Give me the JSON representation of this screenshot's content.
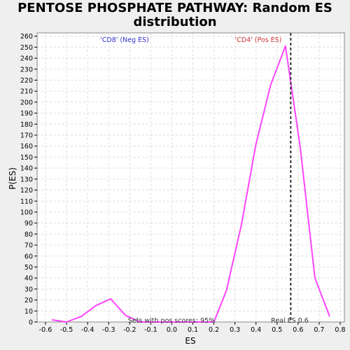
{
  "chart_data": {
    "type": "line",
    "title": "PENTOSE PHOSPHATE PATHWAY: Random ES distribution",
    "xlabel": "ES",
    "ylabel": "P(ES)",
    "xlim": [
      -0.64,
      0.82
    ],
    "ylim": [
      0,
      263
    ],
    "x_ticks": [
      "-0.6",
      "-0.5",
      "-0.4",
      "-0.3",
      "-0.2",
      "-0.1",
      "0.0",
      "0.1",
      "0.2",
      "0.3",
      "0.4",
      "0.5",
      "0.6",
      "0.7",
      "0.8"
    ],
    "x_tick_values": [
      -0.6,
      -0.5,
      -0.4,
      -0.3,
      -0.2,
      -0.1,
      0.0,
      0.1,
      0.2,
      0.3,
      0.4,
      0.5,
      0.6,
      0.7,
      0.8
    ],
    "y_ticks": [
      "0",
      "10",
      "20",
      "30",
      "40",
      "50",
      "60",
      "70",
      "80",
      "90",
      "100",
      "110",
      "120",
      "130",
      "140",
      "150",
      "160",
      "170",
      "180",
      "190",
      "200",
      "210",
      "220",
      "230",
      "240",
      "250",
      "260"
    ],
    "y_tick_values": [
      0,
      10,
      20,
      30,
      40,
      50,
      60,
      70,
      80,
      90,
      100,
      110,
      120,
      130,
      140,
      150,
      160,
      170,
      180,
      190,
      200,
      210,
      220,
      230,
      240,
      250,
      260
    ],
    "grid": true,
    "series": [
      {
        "color": "#ff44ff",
        "x": [
          -0.57,
          -0.5,
          -0.43,
          -0.36,
          -0.29,
          -0.22,
          -0.15,
          -0.08,
          -0.01,
          0.06,
          0.13,
          0.2,
          0.26,
          0.33,
          0.4,
          0.47,
          0.54,
          0.61,
          0.68,
          0.75
        ],
        "y": [
          2,
          0,
          5,
          15,
          21,
          6,
          0,
          0,
          0,
          0,
          0,
          0,
          29,
          88,
          162,
          216,
          251,
          159,
          40,
          5
        ]
      }
    ],
    "real_es": 0.565,
    "annotations": {
      "neg_label": "'CD8' (Neg ES)",
      "pos_label": "'CD4' (Pos ES)",
      "sets_label": "Sets with pos scores: 95%",
      "real_es_label": "Real ES 0.6"
    },
    "colors": {
      "line": "#ff44ff",
      "neg": "#3333cc",
      "pos": "#cc3333",
      "real_es_line": "#333333",
      "grid": "#dddddd",
      "frame": "#888888"
    }
  }
}
